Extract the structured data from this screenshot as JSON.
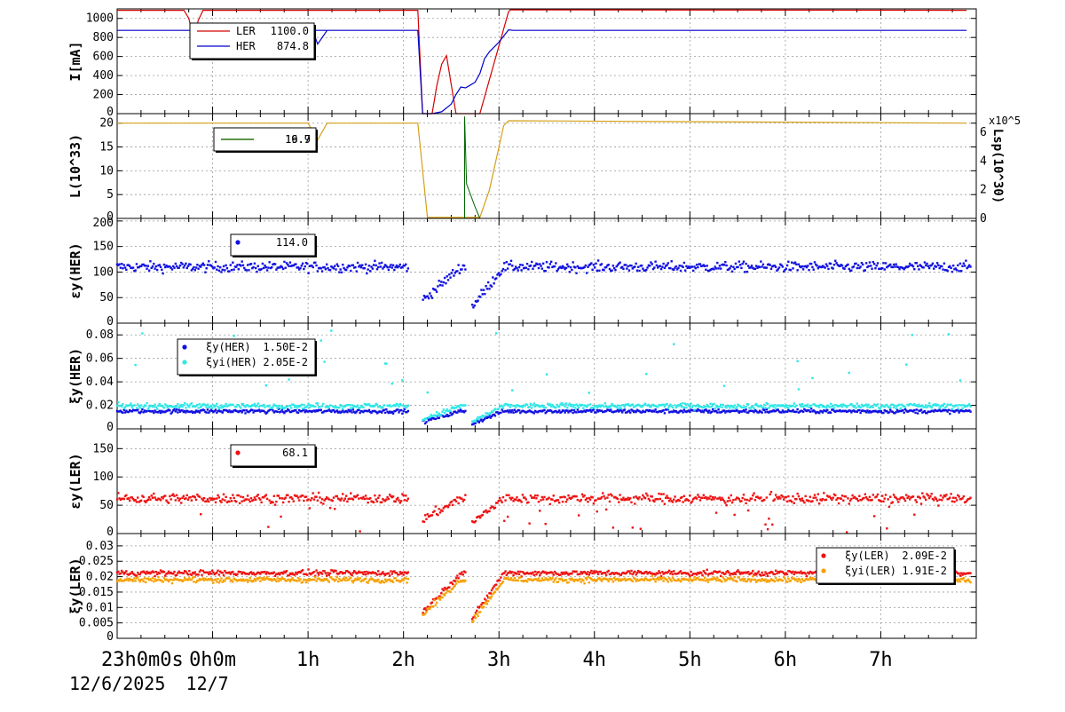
{
  "colors": {
    "frame": "#000000",
    "grid": "#9a9a9a",
    "ler": "#d40000",
    "her": "#0000cc",
    "lum": "#d4a017",
    "lsp": "#006400",
    "xi_her": "#1010e0",
    "xi_her_inst": "#2ee8e8",
    "ey_ler": "#ee1111",
    "xi_ler": "#ee1111",
    "xi_ler_inst": "#f7a000"
  },
  "x_axis": {
    "range_hours": [
      -1,
      8
    ],
    "tick_labels": [
      "0h0m",
      "1h",
      "2h",
      "3h",
      "4h",
      "5h",
      "6h",
      "7h"
    ],
    "start_label": "23h0m0s",
    "date_start": "12/6/2025",
    "date_next": "12/7"
  },
  "chart_data": [
    {
      "type": "line",
      "ylabel": "I[mA]",
      "ylim": [
        0,
        1100
      ],
      "yticks": [
        0,
        200,
        400,
        600,
        800,
        1000
      ],
      "grid": true,
      "legend": {
        "placement": "top-left",
        "entries": [
          {
            "label": "LER",
            "value": "1100.0",
            "color": "ler"
          },
          {
            "label": "HER",
            "value": "874.8",
            "color": "her"
          }
        ]
      },
      "series": [
        {
          "name": "LER",
          "color": "ler",
          "x": [
            -1,
            -0.3,
            -0.25,
            -0.2,
            -0.15,
            -0.1,
            1.9,
            1.95,
            2.0,
            2.05,
            2.15,
            2.2,
            2.25,
            2.3,
            2.35,
            2.4,
            2.45,
            2.55,
            2.62,
            2.66,
            2.75,
            2.8,
            3.1,
            3.12,
            3.2,
            7.9
          ],
          "y": [
            1085,
            1085,
            1000,
            800,
            980,
            1085,
            1085,
            1085,
            1085,
            1085,
            1085,
            0,
            0,
            0,
            300,
            520,
            610,
            0,
            0,
            0,
            0,
            0,
            1070,
            1090,
            1090,
            1085
          ]
        },
        {
          "name": "HER",
          "color": "her",
          "x": [
            -1,
            2.05,
            2.1,
            2.15,
            2.2,
            2.25,
            2.3,
            2.4,
            2.5,
            2.55,
            2.6,
            2.65,
            2.7,
            2.75,
            2.8,
            2.85,
            2.9,
            3.0,
            3.1,
            3.15,
            7.9
          ],
          "y": [
            874,
            874,
            874,
            874,
            0,
            0,
            0,
            20,
            100,
            200,
            280,
            270,
            300,
            330,
            420,
            580,
            650,
            750,
            880,
            874,
            874
          ],
          "dip": {
            "x": [
              0.9,
              1.05,
              1.1,
              1.2
            ],
            "y": [
              874,
              874,
              730,
              874
            ]
          }
        }
      ]
    },
    {
      "type": "line",
      "ylabel": "L(10^33)",
      "ylim": [
        0,
        22
      ],
      "yticks": [
        0,
        5,
        10,
        15,
        20
      ],
      "y2label": "Lsp(10^30)",
      "y2lim": [
        0,
        7.3
      ],
      "y2ticks": [
        0,
        2,
        4,
        6
      ],
      "y2_exponent": "x10^5",
      "grid": true,
      "legend": {
        "placement": "top-left",
        "entries": [
          {
            "label": "",
            "value": "19.7",
            "color": "lum"
          },
          {
            "label": "",
            "value": "16.9",
            "color": "lsp"
          }
        ]
      },
      "series": [
        {
          "name": "L",
          "color": "lum",
          "x": [
            -1,
            0.7,
            1.0,
            1.1,
            1.2,
            2.15,
            2.25,
            2.4,
            2.7,
            2.75,
            2.8,
            2.9,
            3.0,
            3.05,
            3.1,
            7.9
          ],
          "y": [
            20,
            20,
            20,
            16.5,
            20,
            20,
            0.2,
            0.2,
            0.2,
            0.2,
            0.2,
            6,
            15,
            19.5,
            20.5,
            20
          ]
        },
        {
          "name": "Lsp",
          "color": "lsp",
          "x": [
            2.64,
            2.64,
            2.66,
            2.75,
            2.8
          ],
          "y": [
            0,
            7.1,
            2.4,
            0.8,
            0
          ]
        }
      ]
    },
    {
      "type": "scatter",
      "ylabel": "εy(HER)",
      "ylim": [
        0,
        205
      ],
      "yticks": [
        0,
        50,
        100,
        150,
        200
      ],
      "grid": true,
      "legend": {
        "placement": "top-left",
        "entries": [
          {
            "label": "",
            "value": "114.0",
            "color": "xi_her"
          }
        ]
      },
      "series": [
        {
          "name": "",
          "color": "xi_her",
          "baseline": 110,
          "noise": 7,
          "gap": [
            2.2,
            2.35
          ]
        }
      ]
    },
    {
      "type": "scatter",
      "ylabel": "ξy(HER)",
      "ylim": [
        0,
        0.09
      ],
      "yticks": [
        0,
        0.02,
        0.04,
        0.06,
        0.08
      ],
      "ytick_labels": [
        "0",
        "0.02",
        "0.04",
        "0.06",
        "0.08"
      ],
      "grid": true,
      "legend": {
        "placement": "top-left",
        "entries": [
          {
            "label": "ξy(HER)",
            "value": "1.50E-2",
            "color": "xi_her"
          },
          {
            "label": "ξyi(HER)",
            "value": "2.05E-2",
            "color": "xi_her_inst"
          }
        ]
      },
      "series": [
        {
          "name": "ξy(HER)",
          "color": "xi_her",
          "baseline": 0.015,
          "noise": 0.0012
        },
        {
          "name": "ξyi(HER)",
          "color": "xi_her_inst",
          "baseline": 0.0195,
          "noise": 0.0015,
          "outliers": [
            0.03,
            0.085
          ]
        }
      ]
    },
    {
      "type": "scatter",
      "ylabel": "εy(LER)",
      "ylim": [
        0,
        185
      ],
      "yticks": [
        0,
        50,
        100,
        150
      ],
      "grid": true,
      "legend": {
        "placement": "top-left",
        "entries": [
          {
            "label": "",
            "value": "68.1",
            "color": "ey_ler"
          }
        ]
      },
      "series": [
        {
          "name": "",
          "color": "ey_ler",
          "baseline": 62,
          "noise": 6,
          "outliers": [
            0,
            55
          ]
        }
      ]
    },
    {
      "type": "scatter",
      "ylabel": "ξy(LER)",
      "ylim": [
        0,
        0.034
      ],
      "yticks": [
        0,
        0.005,
        0.01,
        0.015,
        0.02,
        0.025,
        0.03
      ],
      "ytick_labels": [
        "0",
        "0.005",
        "0.01",
        "0.015",
        "0.02",
        "0.025",
        "0.03"
      ],
      "grid": true,
      "legend": {
        "placement": "top-right",
        "entries": [
          {
            "label": "ξy(LER)",
            "value": "2.09E-2",
            "color": "xi_ler"
          },
          {
            "label": "ξyi(LER)",
            "value": "1.91E-2",
            "color": "xi_ler_inst"
          }
        ]
      },
      "series": [
        {
          "name": "ξy(LER)",
          "color": "xi_ler",
          "baseline": 0.0212,
          "noise": 0.0006
        },
        {
          "name": "ξyi(LER)",
          "color": "xi_ler_inst",
          "baseline": 0.019,
          "noise": 0.0006
        }
      ]
    }
  ]
}
